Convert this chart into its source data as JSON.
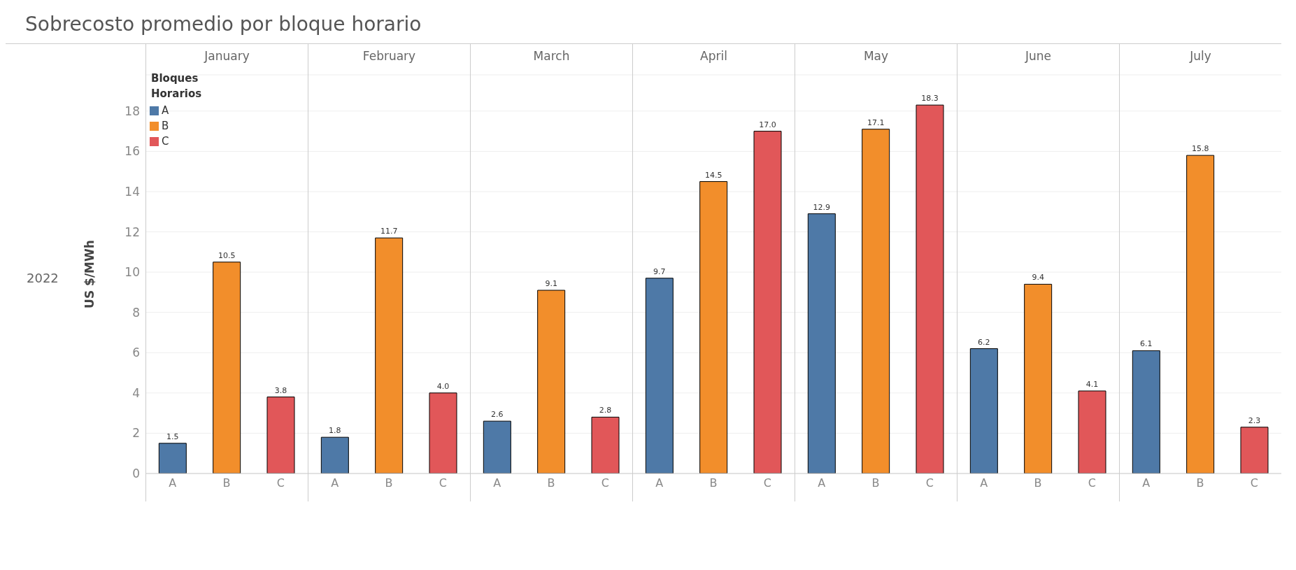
{
  "chart_data": [
    {
      "type": "bar",
      "title": "Sobrecosto promedio por bloque horario",
      "subtitle": "January",
      "ylabel": "US $/MWh",
      "annotations": [
        "2022"
      ],
      "legend": "top left",
      "legend_title": "Bloques Horarios",
      "categories": [
        "A",
        "B",
        "C"
      ],
      "series": [
        {
          "name": "A",
          "color": "#4e79a7",
          "values": [
            1.5,
            null,
            null
          ]
        },
        {
          "name": "B",
          "color": "#f28e2b",
          "values": [
            null,
            10.5,
            null
          ]
        },
        {
          "name": "C",
          "color": "#e15759",
          "values": [
            null,
            null,
            3.8
          ]
        }
      ],
      "value_labels": [
        "1.5",
        "10.5",
        "3.8"
      ],
      "ylim": [
        0,
        19.8
      ],
      "yticks": [
        0,
        2,
        4,
        6,
        8,
        10,
        12,
        14,
        16,
        18
      ],
      "grid": "y"
    },
    {
      "type": "bar",
      "subtitle": "February",
      "categories": [
        "A",
        "B",
        "C"
      ],
      "series": [
        {
          "color": "#4e79a7",
          "values": [
            1.8,
            null,
            null
          ]
        },
        {
          "color": "#f28e2b",
          "values": [
            null,
            11.7,
            null
          ]
        },
        {
          "color": "#e15759",
          "values": [
            null,
            null,
            4.0
          ]
        }
      ],
      "value_labels": [
        "1.8",
        "11.7",
        "4.0"
      ],
      "ylim": [
        0,
        19.8
      ],
      "yticks": [
        0,
        2,
        4,
        6,
        8,
        10,
        12,
        14,
        16,
        18
      ],
      "grid": "y",
      "tick_labels": "x"
    },
    {
      "type": "bar",
      "subtitle": "March",
      "categories": [
        "A",
        "B",
        "C"
      ],
      "series": [
        {
          "color": "#4e79a7",
          "values": [
            2.6,
            null,
            null
          ]
        },
        {
          "color": "#f28e2b",
          "values": [
            null,
            9.1,
            null
          ]
        },
        {
          "color": "#e15759",
          "values": [
            null,
            null,
            2.8
          ]
        }
      ],
      "value_labels": [
        "2.6",
        "9.1",
        "2.8"
      ],
      "ylim": [
        0,
        19.8
      ],
      "yticks": [
        0,
        2,
        4,
        6,
        8,
        10,
        12,
        14,
        16,
        18
      ],
      "grid": "y",
      "tick_labels": "x"
    },
    {
      "type": "bar",
      "subtitle": "April",
      "categories": [
        "A",
        "B",
        "C"
      ],
      "series": [
        {
          "color": "#4e79a7",
          "values": [
            9.7,
            null,
            null
          ]
        },
        {
          "color": "#f28e2b",
          "values": [
            null,
            14.5,
            null
          ]
        },
        {
          "color": "#e15759",
          "values": [
            null,
            null,
            17.0
          ]
        }
      ],
      "value_labels": [
        "9.7",
        "14.5",
        "17.0"
      ],
      "ylim": [
        0,
        19.8
      ],
      "yticks": [
        0,
        2,
        4,
        6,
        8,
        10,
        12,
        14,
        16,
        18
      ],
      "grid": "y",
      "tick_labels": "x"
    },
    {
      "type": "bar",
      "subtitle": "May",
      "categories": [
        "A",
        "B",
        "C"
      ],
      "series": [
        {
          "color": "#4e79a7",
          "values": [
            12.9,
            null,
            null
          ]
        },
        {
          "color": "#f28e2b",
          "values": [
            null,
            17.1,
            null
          ]
        },
        {
          "color": "#e15759",
          "values": [
            null,
            null,
            18.3
          ]
        }
      ],
      "value_labels": [
        "12.9",
        "17.1",
        "18.3"
      ],
      "ylim": [
        0,
        19.8
      ],
      "yticks": [
        0,
        2,
        4,
        6,
        8,
        10,
        12,
        14,
        16,
        18
      ],
      "grid": "y",
      "tick_labels": "x"
    },
    {
      "type": "bar",
      "subtitle": "June",
      "categories": [
        "A",
        "B",
        "C"
      ],
      "series": [
        {
          "color": "#4e79a7",
          "values": [
            6.2,
            null,
            null
          ]
        },
        {
          "color": "#f28e2b",
          "values": [
            null,
            9.4,
            null
          ]
        },
        {
          "color": "#e15759",
          "values": [
            null,
            null,
            4.1
          ]
        }
      ],
      "value_labels": [
        "6.2",
        "9.4",
        "4.1"
      ],
      "ylim": [
        0,
        19.8
      ],
      "yticks": [
        0,
        2,
        4,
        6,
        8,
        10,
        12,
        14,
        16,
        18
      ],
      "grid": "y",
      "tick_labels": "x"
    },
    {
      "type": "bar",
      "subtitle": "July",
      "categories": [
        "A",
        "B",
        "C"
      ],
      "series": [
        {
          "color": "#4e79a7",
          "values": [
            6.1,
            null,
            null
          ]
        },
        {
          "color": "#f28e2b",
          "values": [
            null,
            15.8,
            null
          ]
        },
        {
          "color": "#e15759",
          "values": [
            null,
            null,
            2.3
          ]
        }
      ],
      "value_labels": [
        "6.1",
        "15.8",
        "2.3"
      ],
      "ylim": [
        0,
        19.8
      ],
      "yticks": [
        0,
        2,
        4,
        6,
        8,
        10,
        12,
        14,
        16,
        18
      ],
      "grid": "y",
      "tick_labels": "x"
    }
  ]
}
